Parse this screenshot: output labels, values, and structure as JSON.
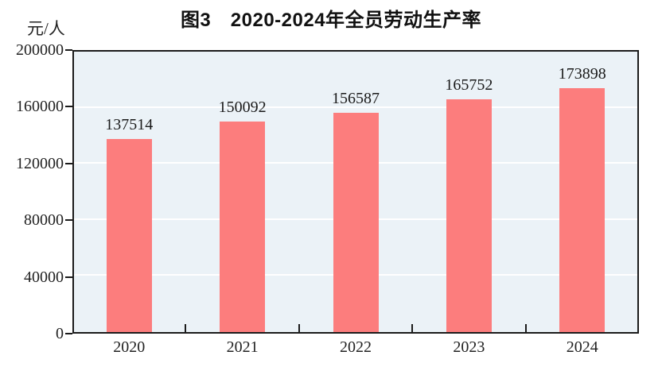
{
  "title": "图3　2020-2024年全员劳动生产率",
  "y_axis_unit": "元/人",
  "colors": {
    "bar": "#FC7D7D",
    "plot_background": "#EBF2F7",
    "gridline": "#FFFFFF",
    "axis_border": "#1B1B1B",
    "text": "#1A1A1A",
    "page_background": "#FFFFFF"
  },
  "chart_data": {
    "type": "bar",
    "title": "图3　2020-2024年全员劳动生产率",
    "categories": [
      "2020",
      "2021",
      "2022",
      "2023",
      "2024"
    ],
    "values": [
      137514,
      150092,
      156587,
      165752,
      173898
    ],
    "data_labels_shown": true,
    "xlabel": "",
    "ylabel": "元/人",
    "ylim": [
      0,
      200000
    ],
    "yticks": [
      0,
      40000,
      80000,
      120000,
      160000,
      200000
    ],
    "grid": true,
    "gridline_style": "white horizontal lines on light blue plot area",
    "legend_position": "none"
  }
}
